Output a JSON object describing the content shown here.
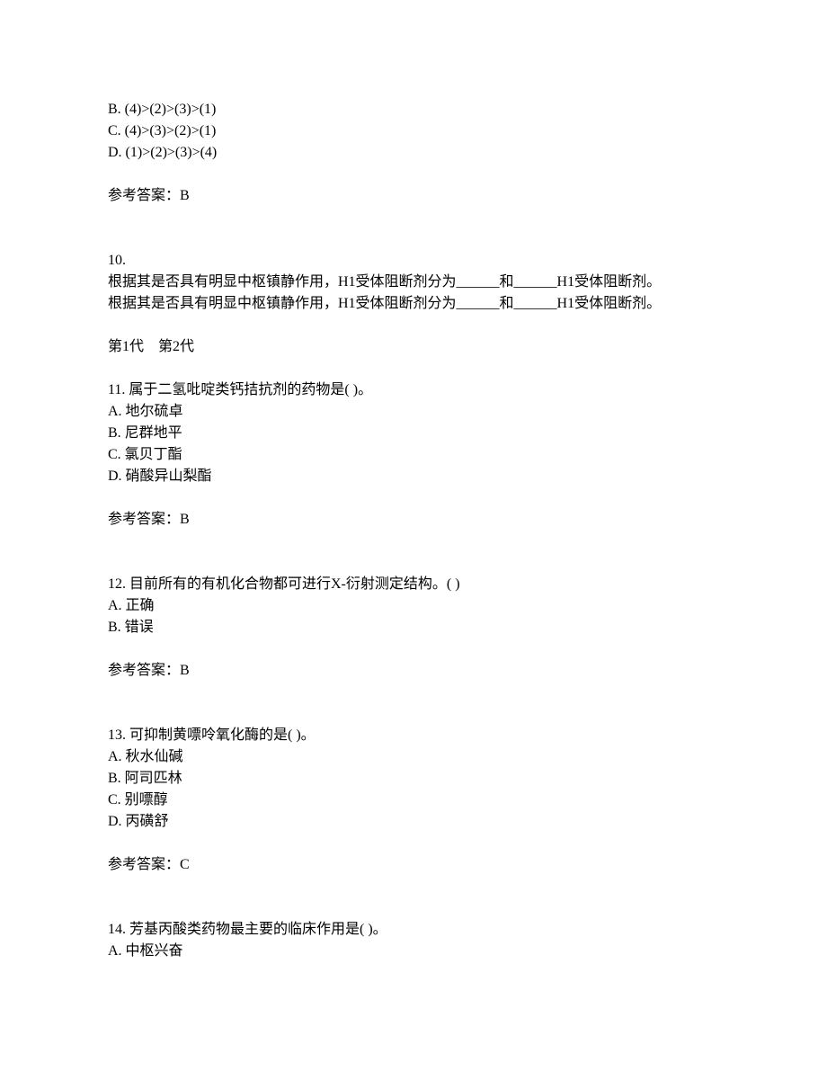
{
  "q9": {
    "options": {
      "b": "B. (4)>(2)>(3)>(1)",
      "c": "C. (4)>(3)>(2)>(1)",
      "d": "D. (1)>(2)>(3)>(4)"
    },
    "answer_label": "参考答案：B"
  },
  "q10": {
    "number": "10.",
    "stem1": "根据其是否具有明显中枢镇静作用，H1受体阻断剂分为______和______H1受体阻断剂。",
    "stem2": "根据其是否具有明显中枢镇静作用，H1受体阻断剂分为______和______H1受体阻断剂。",
    "answer": "第1代　第2代"
  },
  "q11": {
    "stem": "11.  属于二氢吡啶类钙拮抗剂的药物是(  )。",
    "options": {
      "a": "A. 地尔硫卓",
      "b": "B. 尼群地平",
      "c": "C. 氯贝丁酯",
      "d": "D. 硝酸异山梨酯"
    },
    "answer_label": "参考答案：B"
  },
  "q12": {
    "stem": "12.  目前所有的有机化合物都可进行X-衍射测定结构。(  )",
    "options": {
      "a": "A. 正确",
      "b": "B. 错误"
    },
    "answer_label": "参考答案：B"
  },
  "q13": {
    "stem": "13.  可抑制黄嘌呤氧化酶的是(  )。",
    "options": {
      "a": "A. 秋水仙碱",
      "b": "B. 阿司匹林",
      "c": "C. 别嘌醇",
      "d": "D. 丙磺舒"
    },
    "answer_label": "参考答案：C"
  },
  "q14": {
    "stem": "14.  芳基丙酸类药物最主要的临床作用是(  )。",
    "options": {
      "a": "A. 中枢兴奋"
    }
  }
}
